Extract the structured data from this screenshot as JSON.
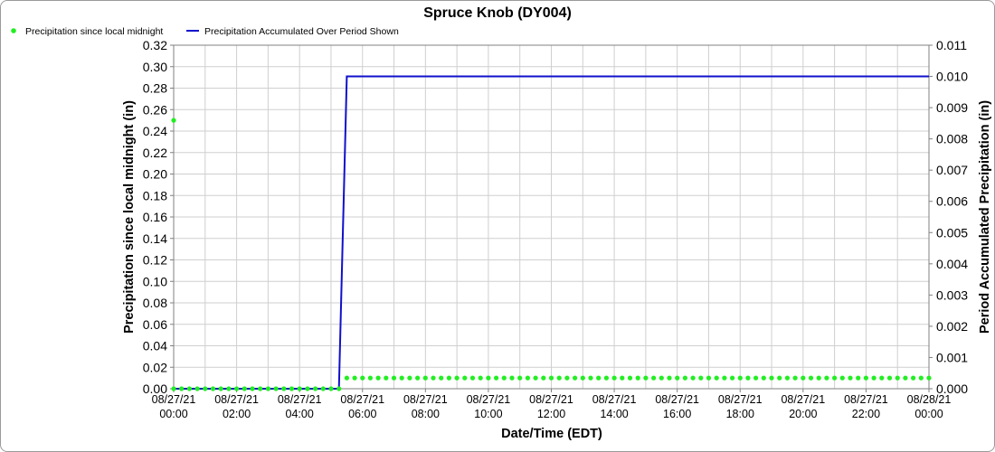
{
  "chart_data": {
    "type": "line",
    "title": "Spruce Knob (DY004)",
    "xlabel": "Date/Time (EDT)",
    "ylabel_left": "Precipitation since local midnight (in)",
    "ylabel_right": "Period Accumulated Precipitation (in)",
    "x_ticks": [
      {
        "t": 0,
        "label": [
          "08/27/21",
          "00:00"
        ]
      },
      {
        "t": 2,
        "label": [
          "08/27/21",
          "02:00"
        ]
      },
      {
        "t": 4,
        "label": [
          "08/27/21",
          "04:00"
        ]
      },
      {
        "t": 6,
        "label": [
          "08/27/21",
          "06:00"
        ]
      },
      {
        "t": 8,
        "label": [
          "08/27/21",
          "08:00"
        ]
      },
      {
        "t": 10,
        "label": [
          "08/27/21",
          "10:00"
        ]
      },
      {
        "t": 12,
        "label": [
          "08/27/21",
          "12:00"
        ]
      },
      {
        "t": 14,
        "label": [
          "08/27/21",
          "14:00"
        ]
      },
      {
        "t": 16,
        "label": [
          "08/27/21",
          "16:00"
        ]
      },
      {
        "t": 18,
        "label": [
          "08/27/21",
          "18:00"
        ]
      },
      {
        "t": 20,
        "label": [
          "08/27/21",
          "20:00"
        ]
      },
      {
        "t": 22,
        "label": [
          "08/27/21",
          "22:00"
        ]
      },
      {
        "t": 24,
        "label": [
          "08/28/21",
          "00:00"
        ]
      }
    ],
    "xlim": [
      0,
      24
    ],
    "ylim_left": [
      0,
      0.32
    ],
    "yticks_left": [
      "0.00",
      "0.02",
      "0.04",
      "0.06",
      "0.08",
      "0.10",
      "0.12",
      "0.14",
      "0.16",
      "0.18",
      "0.20",
      "0.22",
      "0.24",
      "0.26",
      "0.28",
      "0.30",
      "0.32"
    ],
    "ylim_right": [
      0,
      0.011
    ],
    "yticks_right": [
      "0.000",
      "0.001",
      "0.002",
      "0.003",
      "0.004",
      "0.005",
      "0.006",
      "0.007",
      "0.008",
      "0.009",
      "0.010",
      "0.011"
    ],
    "grid": true,
    "legend_position": "top-left",
    "series": [
      {
        "name": "Precipitation since local midnight",
        "axis": "left",
        "style": "points",
        "color": "#22ee22",
        "points": [
          {
            "x": 0,
            "y": 0.25
          },
          {
            "x": 0,
            "y": 0.0
          },
          {
            "x": 5.25,
            "y": 0.0
          },
          {
            "x": 5.5,
            "y": 0.01
          },
          {
            "x": 24,
            "y": 0.01
          }
        ],
        "interval_hours": 0.25
      },
      {
        "name": "Precipitation Accumulated Over Period Shown",
        "axis": "right",
        "style": "line",
        "color": "#1010cc",
        "points": [
          {
            "x": 0,
            "y": 0.0
          },
          {
            "x": 5.25,
            "y": 0.0
          },
          {
            "x": 5.5,
            "y": 0.01
          },
          {
            "x": 24,
            "y": 0.01
          }
        ]
      }
    ]
  }
}
